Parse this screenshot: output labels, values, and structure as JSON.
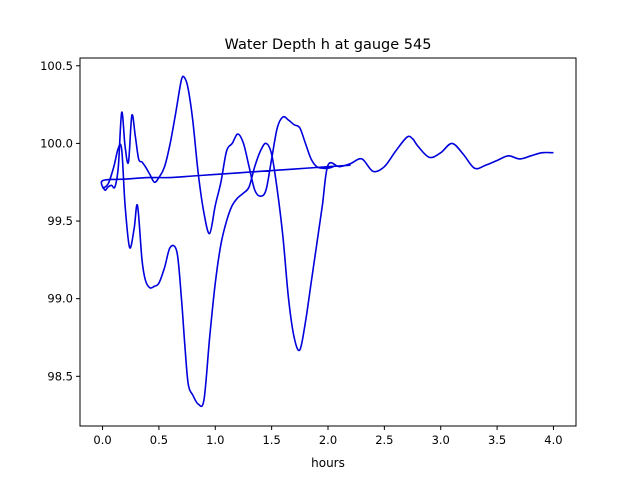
{
  "chart_data": {
    "type": "line",
    "title": "Water Depth h at gauge 545",
    "xlabel": "hours",
    "ylabel": "",
    "xlim": [
      -0.2,
      4.2
    ],
    "ylim": [
      98.18,
      100.55
    ],
    "xticks": [
      0.0,
      0.5,
      1.0,
      1.5,
      2.0,
      2.5,
      3.0,
      3.5,
      4.0
    ],
    "xtick_labels": [
      "0.0",
      "0.5",
      "1.0",
      "1.5",
      "2.0",
      "2.5",
      "3.0",
      "3.5",
      "4.0"
    ],
    "yticks": [
      98.5,
      99.0,
      99.5,
      100.0,
      100.5
    ],
    "ytick_labels": [
      "98.5",
      "99.0",
      "99.5",
      "100.0",
      "100.5"
    ],
    "grid": false,
    "color": "#0000dd",
    "series": [
      {
        "name": "",
        "x": [
          0.0,
          0.05,
          0.1,
          0.14,
          0.17,
          0.2,
          0.24,
          0.28,
          0.31,
          0.35,
          0.38,
          0.42,
          0.46,
          0.5,
          0.55,
          0.6,
          0.66,
          0.7,
          0.73,
          0.76,
          0.8,
          0.85,
          0.9,
          0.95,
          1.0,
          1.05,
          1.1,
          1.15,
          1.2,
          1.25,
          1.3,
          1.35,
          1.4,
          1.45,
          1.5,
          1.55,
          1.6,
          1.65,
          1.7,
          1.75,
          1.8,
          1.85,
          1.9,
          1.95,
          2.0,
          2.1,
          2.2,
          2.3,
          2.4,
          2.5,
          2.6,
          2.7,
          2.75,
          2.8,
          2.9,
          3.0,
          3.1,
          3.2,
          3.3,
          3.4,
          3.5,
          3.6,
          3.7,
          3.8,
          3.9,
          4.0
        ],
        "y": [
          99.71,
          99.74,
          99.85,
          99.97,
          99.96,
          99.6,
          99.33,
          99.45,
          99.6,
          99.25,
          99.12,
          99.07,
          99.08,
          99.1,
          99.2,
          99.33,
          99.3,
          99.0,
          98.7,
          98.45,
          98.38,
          98.32,
          98.35,
          98.75,
          99.1,
          99.35,
          99.5,
          99.6,
          99.65,
          99.68,
          99.72,
          99.85,
          99.95,
          100.0,
          99.93,
          99.7,
          99.4,
          99.0,
          98.75,
          98.67,
          98.85,
          99.1,
          99.35,
          99.6,
          99.86,
          99.85,
          99.87,
          99.9,
          99.82,
          99.85,
          99.95,
          100.04,
          100.03,
          99.98,
          99.91,
          99.94,
          100.0,
          99.93,
          99.84,
          99.86,
          99.89,
          99.92,
          99.9,
          99.92,
          99.94,
          99.94
        ]
      },
      {
        "name": "",
        "x": [
          2.2,
          2.0,
          1.8,
          1.6,
          1.4,
          1.2,
          1.0,
          0.8,
          0.6,
          0.4,
          0.2,
          0.0,
          0.02,
          0.05,
          0.08,
          0.11,
          0.14,
          0.17,
          0.2,
          0.23,
          0.26,
          0.29,
          0.32,
          0.35,
          0.38,
          0.42,
          0.46,
          0.5,
          0.55,
          0.6,
          0.65,
          0.7,
          0.73,
          0.76,
          0.8,
          0.85,
          0.9,
          0.95,
          1.0,
          1.05,
          1.1,
          1.15,
          1.2,
          1.25,
          1.3,
          1.35,
          1.4,
          1.45,
          1.5,
          1.55,
          1.6,
          1.65,
          1.7,
          1.75,
          1.8,
          1.85,
          1.9,
          1.95,
          2.0,
          2.05
        ],
        "y": [
          99.86,
          99.85,
          99.84,
          99.83,
          99.82,
          99.81,
          99.8,
          99.79,
          99.78,
          99.78,
          99.77,
          99.76,
          99.7,
          99.72,
          99.73,
          99.72,
          99.85,
          100.2,
          99.98,
          99.88,
          100.18,
          100.05,
          99.9,
          99.88,
          99.85,
          99.8,
          99.75,
          99.78,
          99.85,
          100.0,
          100.2,
          100.41,
          100.42,
          100.35,
          100.15,
          99.8,
          99.55,
          99.42,
          99.6,
          99.75,
          99.95,
          100.0,
          100.06,
          100.0,
          99.85,
          99.7,
          99.66,
          99.7,
          99.9,
          100.1,
          100.17,
          100.15,
          100.12,
          100.1,
          100.0,
          99.9,
          99.85,
          99.84,
          99.84,
          99.85
        ]
      }
    ]
  }
}
